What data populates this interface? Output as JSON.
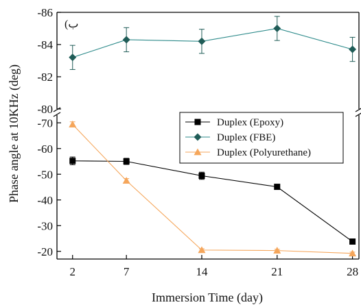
{
  "chart_data": {
    "type": "line",
    "panel_label": "(ب",
    "xlabel": "Immersion Time (day)",
    "ylabel": "Phase angle at 10KHz (deg)",
    "x": [
      2,
      7,
      14,
      21,
      28
    ],
    "x_ticks": [
      "2",
      "7",
      "14",
      "21",
      "28"
    ],
    "axis_break": true,
    "upper_panel": {
      "ylim": [
        -80,
        -86
      ],
      "y_ticks": [
        "-86",
        "-84",
        "-82",
        "-80"
      ]
    },
    "lower_panel": {
      "ylim": [
        -17,
        -73
      ],
      "y_ticks": [
        "-70",
        "-60",
        "-50",
        "-40",
        "-30",
        "-20"
      ]
    },
    "series": [
      {
        "name": "Duplex (Epoxy)",
        "panel": "lower",
        "marker": "square",
        "color": "#000000",
        "line_color": "#000000",
        "values": [
          -55.2,
          -55.0,
          -49.4,
          -45.1,
          -23.8
        ],
        "errors": [
          1.5,
          1.2,
          1.4,
          1.0,
          0.6
        ]
      },
      {
        "name": "Duplex (FBE)",
        "panel": "upper",
        "marker": "diamond",
        "color": "#1f5c57",
        "line_color": "#2e8b8b",
        "values": [
          -83.2,
          -84.3,
          -84.2,
          -85.0,
          -83.7
        ],
        "errors": [
          0.75,
          0.75,
          0.75,
          0.75,
          0.75
        ]
      },
      {
        "name": "Duplex (Polyurethane)",
        "panel": "lower",
        "marker": "triangle",
        "color": "#f5a65b",
        "line_color": "#f5a65b",
        "values": [
          -69.4,
          -47.5,
          -20.5,
          -20.3,
          -19.2
        ],
        "errors": [
          1.0,
          0.8,
          0.5,
          0.5,
          0.5
        ]
      }
    ],
    "legend_position": "center-right"
  }
}
